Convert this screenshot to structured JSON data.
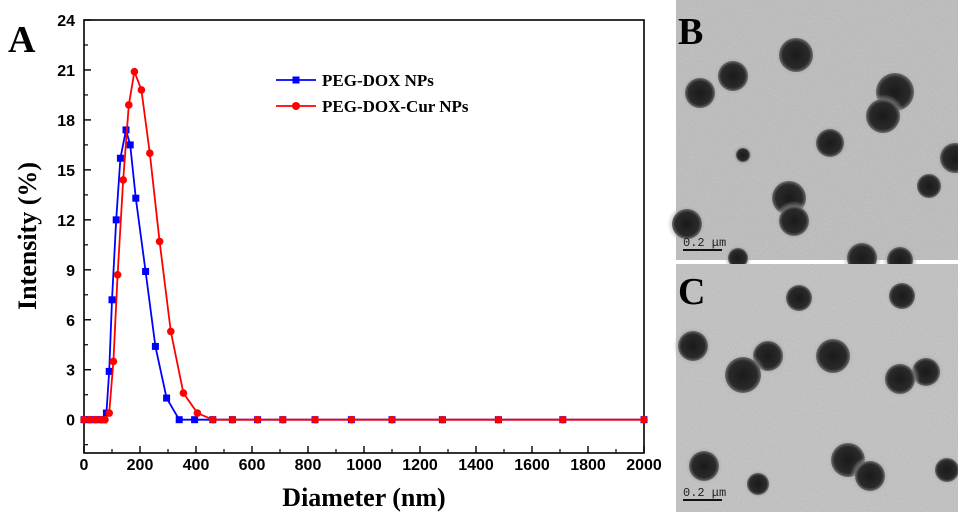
{
  "chart_data": {
    "type": "line",
    "panel_label": "A",
    "xlabel": "Diameter (nm)",
    "ylabel": "Intensity (%)",
    "xlim": [
      0,
      2000
    ],
    "ylim": [
      -2,
      24
    ],
    "xticks": [
      0,
      200,
      400,
      600,
      800,
      1000,
      1200,
      1400,
      1600,
      1800,
      2000
    ],
    "yticks": [
      0,
      3,
      6,
      9,
      12,
      15,
      18,
      21,
      24
    ],
    "grid": false,
    "legend_position": "top-right",
    "series": [
      {
        "name": "PEG-DOX NPs",
        "color": "#0000ff",
        "marker": "square",
        "x": [
          0,
          20,
          40,
          60,
          70,
          80,
          90,
          100,
          115,
          130,
          150,
          165,
          185,
          220,
          255,
          295,
          340,
          395,
          460,
          530,
          620,
          710,
          825,
          955,
          1100,
          1280,
          1480,
          1710,
          2000
        ],
        "y": [
          0,
          0,
          0,
          0,
          0,
          0.4,
          2.9,
          7.2,
          12.0,
          15.7,
          17.4,
          16.5,
          13.3,
          8.9,
          4.4,
          1.3,
          0,
          0,
          0,
          0,
          0,
          0,
          0,
          0,
          0,
          0,
          0,
          0,
          0
        ]
      },
      {
        "name": "PEG-DOX-Cur NPs",
        "color": "#ff0000",
        "marker": "circle",
        "x": [
          0,
          20,
          40,
          60,
          75,
          90,
          105,
          120,
          140,
          160,
          180,
          205,
          235,
          270,
          310,
          355,
          405,
          460,
          530,
          620,
          710,
          825,
          955,
          1100,
          1280,
          1480,
          1710,
          2000
        ],
        "y": [
          0,
          0,
          0,
          0,
          0,
          0.4,
          3.5,
          8.7,
          14.4,
          18.9,
          20.9,
          19.8,
          16.0,
          10.7,
          5.3,
          1.6,
          0.4,
          0,
          0,
          0,
          0,
          0,
          0,
          0,
          0,
          0,
          0,
          0
        ]
      }
    ]
  },
  "micrographs": [
    {
      "panel_label": "B",
      "scale_bar": "0.2 μm"
    },
    {
      "panel_label": "C",
      "scale_bar": "0.2 μm"
    }
  ]
}
